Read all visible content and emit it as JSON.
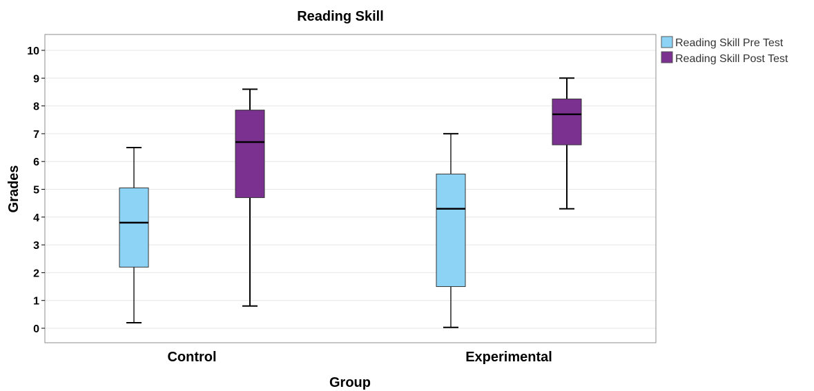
{
  "colors": {
    "pre": "#8dd3f6",
    "post": "#7a3190",
    "frame": "#8c8c8c",
    "grid": "#e6e6e6"
  },
  "chart_data": {
    "type": "box",
    "title": "Reading Skill",
    "xlabel": "Group",
    "ylabel": "Grades",
    "ylim": [
      -0.5,
      10.6
    ],
    "yticks": [
      0,
      1,
      2,
      3,
      4,
      5,
      6,
      7,
      8,
      9,
      10
    ],
    "grid": true,
    "legend_position": "top-right outside",
    "categories": [
      "Control",
      "Experimental"
    ],
    "series": [
      {
        "name": "Reading Skill Pre Test",
        "color_key": "pre",
        "boxes": [
          {
            "min": 0.2,
            "q1": 2.2,
            "median": 3.8,
            "q3": 5.05,
            "max": 6.5
          },
          {
            "min": 0.03,
            "q1": 1.5,
            "median": 4.3,
            "q3": 5.55,
            "max": 7.0
          }
        ]
      },
      {
        "name": "Reading Skill Post Test",
        "color_key": "post",
        "boxes": [
          {
            "min": 0.8,
            "q1": 4.7,
            "median": 6.7,
            "q3": 7.85,
            "max": 8.6
          },
          {
            "min": 4.3,
            "q1": 6.6,
            "median": 7.7,
            "q3": 8.25,
            "max": 9.0
          }
        ]
      }
    ]
  }
}
